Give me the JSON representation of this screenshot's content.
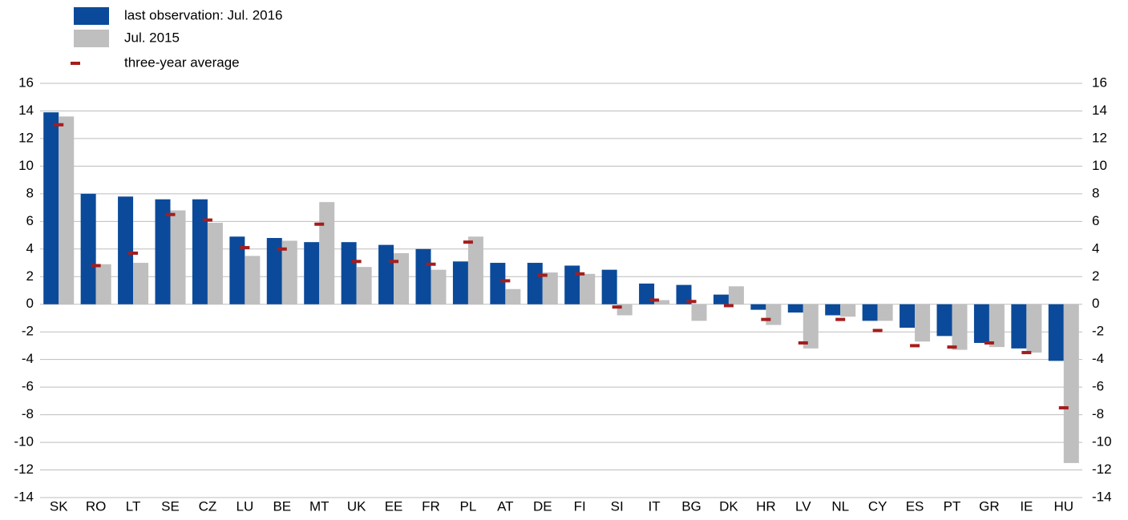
{
  "chart_data": {
    "type": "bar",
    "categories": [
      "SK",
      "RO",
      "LT",
      "SE",
      "CZ",
      "LU",
      "BE",
      "MT",
      "UK",
      "EE",
      "FR",
      "PL",
      "AT",
      "DE",
      "FI",
      "SI",
      "IT",
      "BG",
      "DK",
      "HR",
      "LV",
      "NL",
      "CY",
      "ES",
      "PT",
      "GR",
      "IE",
      "HU"
    ],
    "series": [
      {
        "name": "last observation: Jul. 2016",
        "color": "#0b4a9a",
        "marker": "bar",
        "values": [
          13.9,
          8.0,
          7.8,
          7.6,
          7.6,
          4.9,
          4.8,
          4.5,
          4.5,
          4.3,
          4.0,
          3.1,
          3.0,
          3.0,
          2.8,
          2.5,
          1.5,
          1.4,
          0.7,
          -0.4,
          -0.6,
          -0.8,
          -1.2,
          -1.7,
          -2.3,
          -2.8,
          -3.2,
          -4.1
        ]
      },
      {
        "name": "Jul. 2015",
        "color": "#bfbfbf",
        "marker": "bar",
        "values": [
          13.6,
          2.9,
          3.0,
          6.8,
          5.9,
          3.5,
          4.6,
          7.4,
          2.7,
          3.7,
          2.5,
          4.9,
          1.1,
          2.3,
          2.2,
          -0.8,
          0.3,
          -1.2,
          1.3,
          -1.5,
          -3.2,
          -0.9,
          -1.2,
          -2.7,
          -3.3,
          -3.1,
          -3.5,
          -11.5
        ]
      },
      {
        "name": "three-year average",
        "color": "#a51d1d",
        "marker": "dash",
        "values": [
          13.0,
          2.8,
          3.7,
          6.5,
          6.1,
          4.1,
          4.0,
          5.8,
          3.1,
          3.1,
          2.9,
          4.5,
          1.7,
          2.1,
          2.2,
          -0.2,
          0.3,
          0.2,
          -0.1,
          -1.1,
          -2.8,
          -1.1,
          -1.9,
          -3.0,
          -3.1,
          -2.8,
          -3.5,
          -7.5
        ]
      }
    ],
    "ylim": [
      -14,
      16
    ],
    "yticks": [
      -14,
      -12,
      -10,
      -8,
      -6,
      -4,
      -2,
      0,
      2,
      4,
      6,
      8,
      10,
      12,
      14,
      16
    ],
    "grid": true,
    "right_axis": true
  }
}
